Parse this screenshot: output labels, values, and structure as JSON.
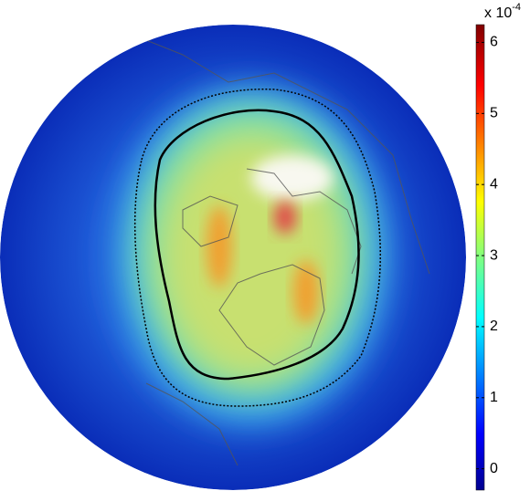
{
  "colorbar": {
    "ticks": [
      0,
      1,
      2,
      3,
      4,
      5,
      6
    ],
    "clim": [
      -0.3,
      6.25
    ],
    "multiplier": "x 10",
    "exponent": "-4"
  }
}
